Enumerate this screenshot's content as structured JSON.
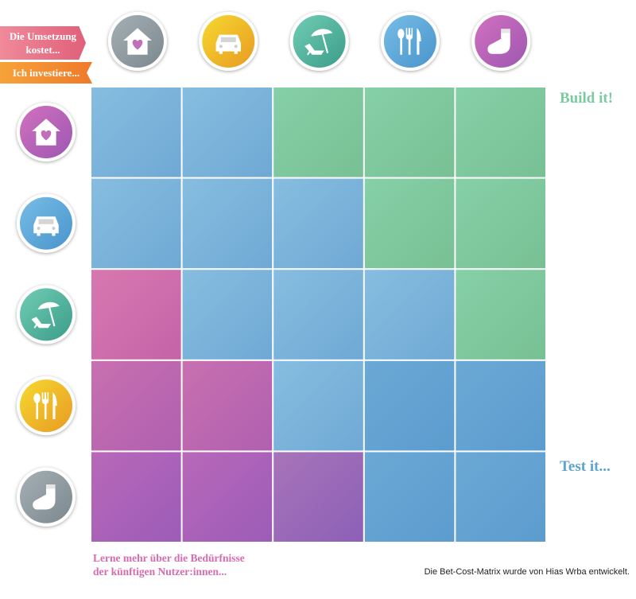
{
  "labels": {
    "cost": "Die Umsetzung kostet...",
    "invest": "Ich investiere..."
  },
  "outcomes": {
    "build": "Build it!",
    "test": "Test it..."
  },
  "footer": {
    "learn": [
      "Lerne mehr über die Bedürfnisse",
      "der künftigen Nutzer:innen..."
    ],
    "credit": "Die Bet-Cost-Matrix wurde von Hias Wrba entwickelt."
  }
}
